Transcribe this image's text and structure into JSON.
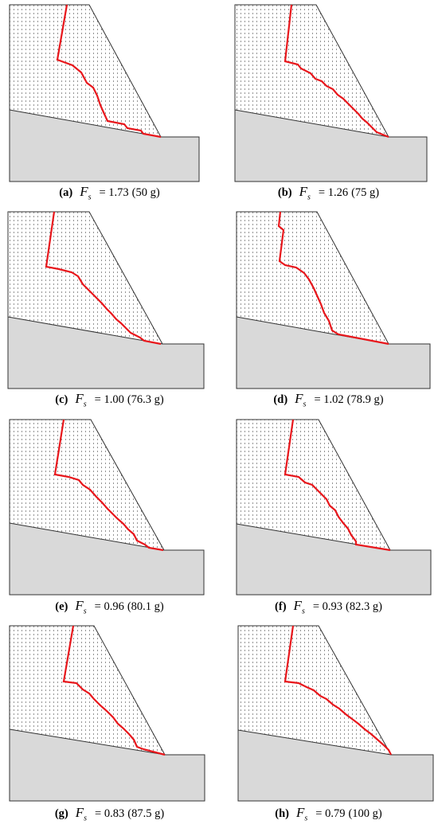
{
  "figure": {
    "symbol": "F",
    "symbol_subscript": "s",
    "equals": "=",
    "panels": [
      {
        "label": "(a)",
        "factor": "1.73",
        "acceleration": "(50 g)",
        "failure_surface": [
          [
            84,
            6
          ],
          [
            72,
            75
          ],
          [
            91,
            82
          ],
          [
            102,
            91
          ],
          [
            109,
            104
          ],
          [
            117,
            110
          ],
          [
            122,
            120
          ],
          [
            126,
            132
          ],
          [
            130,
            141
          ],
          [
            135,
            152
          ],
          [
            156,
            156
          ],
          [
            160,
            161
          ],
          [
            177,
            164
          ],
          [
            180,
            168
          ],
          [
            202,
            172
          ]
        ]
      },
      {
        "label": "(b)",
        "factor": "1.26",
        "acceleration": "(75 g)",
        "failure_surface": [
          [
            366,
            6
          ],
          [
            358,
            77
          ],
          [
            374,
            81
          ],
          [
            378,
            86
          ],
          [
            390,
            92
          ],
          [
            396,
            99
          ],
          [
            404,
            102
          ],
          [
            410,
            108
          ],
          [
            418,
            112
          ],
          [
            424,
            119
          ],
          [
            431,
            124
          ],
          [
            438,
            131
          ],
          [
            444,
            137
          ],
          [
            450,
            143
          ],
          [
            455,
            149
          ],
          [
            461,
            154
          ],
          [
            467,
            160
          ],
          [
            473,
            166
          ],
          [
            478,
            168
          ],
          [
            488,
            172
          ]
        ]
      },
      {
        "label": "(c)",
        "factor": "1.00",
        "acceleration": "(76.3 g)",
        "failure_surface": [
          [
            68,
            266
          ],
          [
            58,
            335
          ],
          [
            74,
            338
          ],
          [
            90,
            342
          ],
          [
            98,
            347
          ],
          [
            104,
            357
          ],
          [
            110,
            363
          ],
          [
            116,
            369
          ],
          [
            122,
            375
          ],
          [
            128,
            381
          ],
          [
            134,
            388
          ],
          [
            140,
            394
          ],
          [
            146,
            401
          ],
          [
            152,
            406
          ],
          [
            158,
            412
          ],
          [
            164,
            418
          ],
          [
            170,
            421
          ],
          [
            176,
            424
          ],
          [
            181,
            428
          ],
          [
            202,
            432
          ]
        ]
      },
      {
        "label": "(d)",
        "factor": "1.02",
        "acceleration": "(78.9 g)",
        "failure_surface": [
          [
            352,
            266
          ],
          [
            350,
            284
          ],
          [
            356,
            289
          ],
          [
            351,
            328
          ],
          [
            358,
            333
          ],
          [
            372,
            336
          ],
          [
            382,
            343
          ],
          [
            388,
            351
          ],
          [
            394,
            362
          ],
          [
            398,
            371
          ],
          [
            403,
            382
          ],
          [
            407,
            393
          ],
          [
            413,
            403
          ],
          [
            417,
            415
          ],
          [
            425,
            420
          ],
          [
            488,
            432
          ]
        ]
      },
      {
        "label": "(e)",
        "factor": "0.96",
        "acceleration": "(80.1 g)",
        "failure_surface": [
          [
            80,
            527
          ],
          [
            69,
            596
          ],
          [
            86,
            599
          ],
          [
            99,
            603
          ],
          [
            104,
            609
          ],
          [
            113,
            615
          ],
          [
            121,
            624
          ],
          [
            128,
            631
          ],
          [
            135,
            639
          ],
          [
            141,
            645
          ],
          [
            147,
            651
          ],
          [
            155,
            658
          ],
          [
            161,
            665
          ],
          [
            168,
            671
          ],
          [
            172,
            679
          ],
          [
            182,
            684
          ],
          [
            187,
            688
          ],
          [
            205,
            691
          ]
        ]
      },
      {
        "label": "(f)",
        "factor": "0.93",
        "acceleration": "(82.3 g)",
        "failure_surface": [
          [
            368,
            527
          ],
          [
            358,
            596
          ],
          [
            375,
            599
          ],
          [
            383,
            606
          ],
          [
            392,
            609
          ],
          [
            398,
            615
          ],
          [
            404,
            621
          ],
          [
            410,
            627
          ],
          [
            414,
            635
          ],
          [
            421,
            641
          ],
          [
            425,
            649
          ],
          [
            431,
            657
          ],
          [
            437,
            664
          ],
          [
            441,
            672
          ],
          [
            447,
            680
          ],
          [
            447,
            684
          ],
          [
            490,
            691
          ]
        ]
      },
      {
        "label": "(g)",
        "factor": "0.83",
        "acceleration": "(87.5 g)",
        "failure_surface": [
          [
            92,
            786
          ],
          [
            80,
            856
          ],
          [
            96,
            858
          ],
          [
            104,
            866
          ],
          [
            112,
            871
          ],
          [
            118,
            878
          ],
          [
            126,
            886
          ],
          [
            134,
            893
          ],
          [
            142,
            901
          ],
          [
            148,
            909
          ],
          [
            155,
            915
          ],
          [
            162,
            922
          ],
          [
            168,
            929
          ],
          [
            172,
            938
          ],
          [
            180,
            941
          ],
          [
            207,
            948
          ]
        ]
      },
      {
        "label": "(h)",
        "factor": "0.79",
        "acceleration": "(100 g)",
        "failure_surface": [
          [
            368,
            786
          ],
          [
            358,
            856
          ],
          [
            375,
            858
          ],
          [
            385,
            863
          ],
          [
            394,
            867
          ],
          [
            402,
            874
          ],
          [
            410,
            878
          ],
          [
            418,
            885
          ],
          [
            426,
            890
          ],
          [
            434,
            897
          ],
          [
            442,
            903
          ],
          [
            450,
            909
          ],
          [
            458,
            916
          ],
          [
            466,
            922
          ],
          [
            474,
            929
          ],
          [
            482,
            936
          ],
          [
            488,
            942
          ],
          [
            491,
            948
          ]
        ]
      }
    ]
  }
}
